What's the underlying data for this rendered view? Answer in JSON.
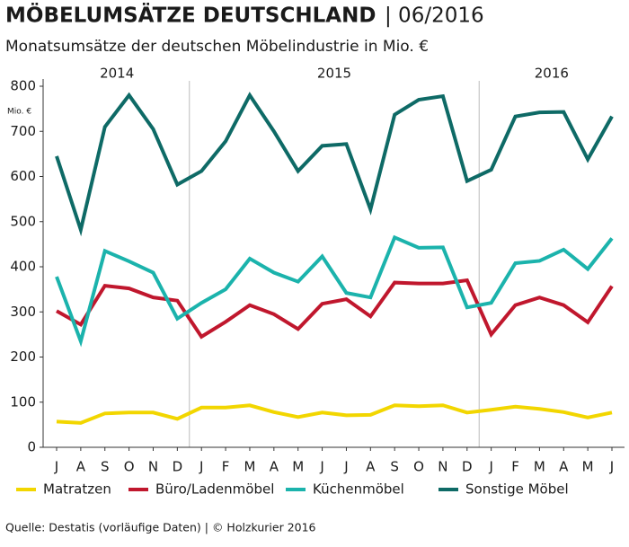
{
  "chart_data": {
    "type": "line",
    "title": "MÖBELUMSÄTZE DEUTSCHLAND",
    "title_date": "| 06/2016",
    "subtitle": "Monatsumsätze der deutschen Möbelindustrie in Mio. €",
    "y_unit": "Mio. €",
    "year_labels": [
      "2014",
      "2015",
      "2016"
    ],
    "source": "Quelle: Destatis (vorläufige Daten) | © Holzkurier 2016",
    "categories": [
      "J",
      "A",
      "S",
      "O",
      "N",
      "D",
      "J",
      "F",
      "M",
      "A",
      "M",
      "J",
      "J",
      "A",
      "S",
      "O",
      "N",
      "D",
      "J",
      "F",
      "M",
      "A",
      "M",
      "J"
    ],
    "ylim": [
      0,
      800
    ],
    "yticks": [
      0,
      100,
      200,
      300,
      400,
      500,
      600,
      700,
      800
    ],
    "series": [
      {
        "name": "Matratzen",
        "color": "#f2d600",
        "values": [
          57,
          54,
          75,
          77,
          77,
          63,
          88,
          88,
          93,
          78,
          67,
          77,
          71,
          72,
          93,
          91,
          93,
          77,
          83,
          90,
          85,
          78,
          66,
          77
        ]
      },
      {
        "name": "Büro/Ladenmöbel",
        "color": "#c0172d",
        "values": [
          302,
          272,
          358,
          352,
          332,
          325,
          245,
          278,
          315,
          295,
          262,
          318,
          328,
          290,
          365,
          363,
          363,
          370,
          250,
          315,
          332,
          315,
          277,
          357
        ]
      },
      {
        "name": "Küchenmöbel",
        "color": "#1bb3ac",
        "values": [
          378,
          235,
          435,
          412,
          387,
          285,
          320,
          350,
          418,
          387,
          367,
          423,
          342,
          332,
          465,
          442,
          443,
          310,
          320,
          408,
          413,
          438,
          395,
          463
        ]
      },
      {
        "name": "Sonstige Möbel",
        "color": "#0e6a66",
        "values": [
          645,
          482,
          710,
          780,
          705,
          582,
          612,
          678,
          780,
          700,
          612,
          668,
          672,
          527,
          737,
          770,
          778,
          590,
          615,
          733,
          742,
          743,
          638,
          733
        ]
      }
    ]
  }
}
